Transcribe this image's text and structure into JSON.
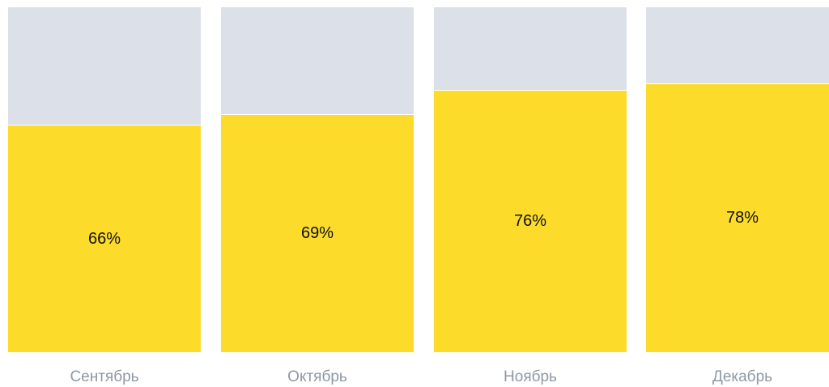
{
  "colors": {
    "filled": "#fddb2b",
    "remainder": "#dce1e9",
    "category_text": "#8f98a6"
  },
  "chart_data": {
    "type": "bar",
    "stacked": true,
    "normalized_to": 100,
    "categories": [
      "Сентябрь",
      "Октябрь",
      "Ноябрь",
      "Декабрь"
    ],
    "values": [
      66,
      69,
      76,
      78
    ],
    "value_labels": [
      "66%",
      "69%",
      "76%",
      "78%"
    ],
    "ylim": [
      0,
      100
    ],
    "grid": false,
    "legend": "none"
  }
}
